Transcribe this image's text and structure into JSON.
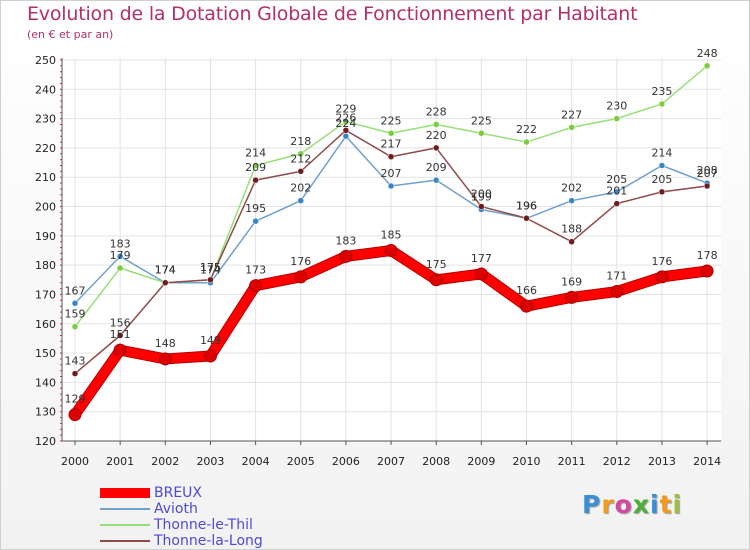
{
  "header": {
    "title": "Evolution de la Dotation Globale de Fonctionnement par Habitant",
    "subtitle": "(en € et par an)"
  },
  "chart_data": {
    "type": "line",
    "title": "Evolution de la Dotation Globale de Fonctionnement par Habitant",
    "subtitle": "(en € et par an)",
    "categories": [
      "2000",
      "2001",
      "2002",
      "2003",
      "2004",
      "2005",
      "2006",
      "2007",
      "2008",
      "2009",
      "2010",
      "2011",
      "2012",
      "2013",
      "2014"
    ],
    "ylim": [
      120,
      250
    ],
    "yticks": [
      120,
      130,
      140,
      150,
      160,
      170,
      180,
      190,
      200,
      210,
      220,
      230,
      240,
      250
    ],
    "grid": true,
    "xlabel": "",
    "ylabel": "",
    "legend_position": "bottom-left",
    "series": [
      {
        "name": "BREUX",
        "color": "#ff0000",
        "width": 9,
        "marker": "#dd0000",
        "values": [
          129,
          151,
          148,
          149,
          173,
          176,
          183,
          185,
          175,
          177,
          166,
          169,
          171,
          176,
          178
        ]
      },
      {
        "name": "Avioth",
        "color": "#6fa0cf",
        "width": 1.5,
        "marker": "#3a85c9",
        "values": [
          167,
          183,
          174,
          174,
          195,
          202,
          224,
          207,
          209,
          199,
          196,
          202,
          205,
          214,
          208
        ]
      },
      {
        "name": "Thonne-le-Thil",
        "color": "#97df7a",
        "width": 1.5,
        "marker": "#7ccc40",
        "values": [
          159,
          179,
          174,
          175,
          214,
          218,
          229,
          225,
          228,
          225,
          222,
          227,
          230,
          235,
          248
        ]
      },
      {
        "name": "Thonne-la-Long",
        "color": "#8f4a4a",
        "width": 1.5,
        "marker": "#701c1c",
        "values": [
          143,
          156,
          174,
          175,
          209,
          212,
          226,
          217,
          220,
          200,
          196,
          188,
          201,
          205,
          207
        ]
      }
    ]
  },
  "logo": {
    "letters": [
      "P",
      "r",
      "o",
      "x",
      "i",
      "t",
      "i"
    ],
    "colors": [
      "#3a8fd6",
      "#f39a1e",
      "#d24aa0",
      "#4dae3a",
      "#3a8fd6",
      "#f39a1e",
      "#9ac23c"
    ]
  }
}
